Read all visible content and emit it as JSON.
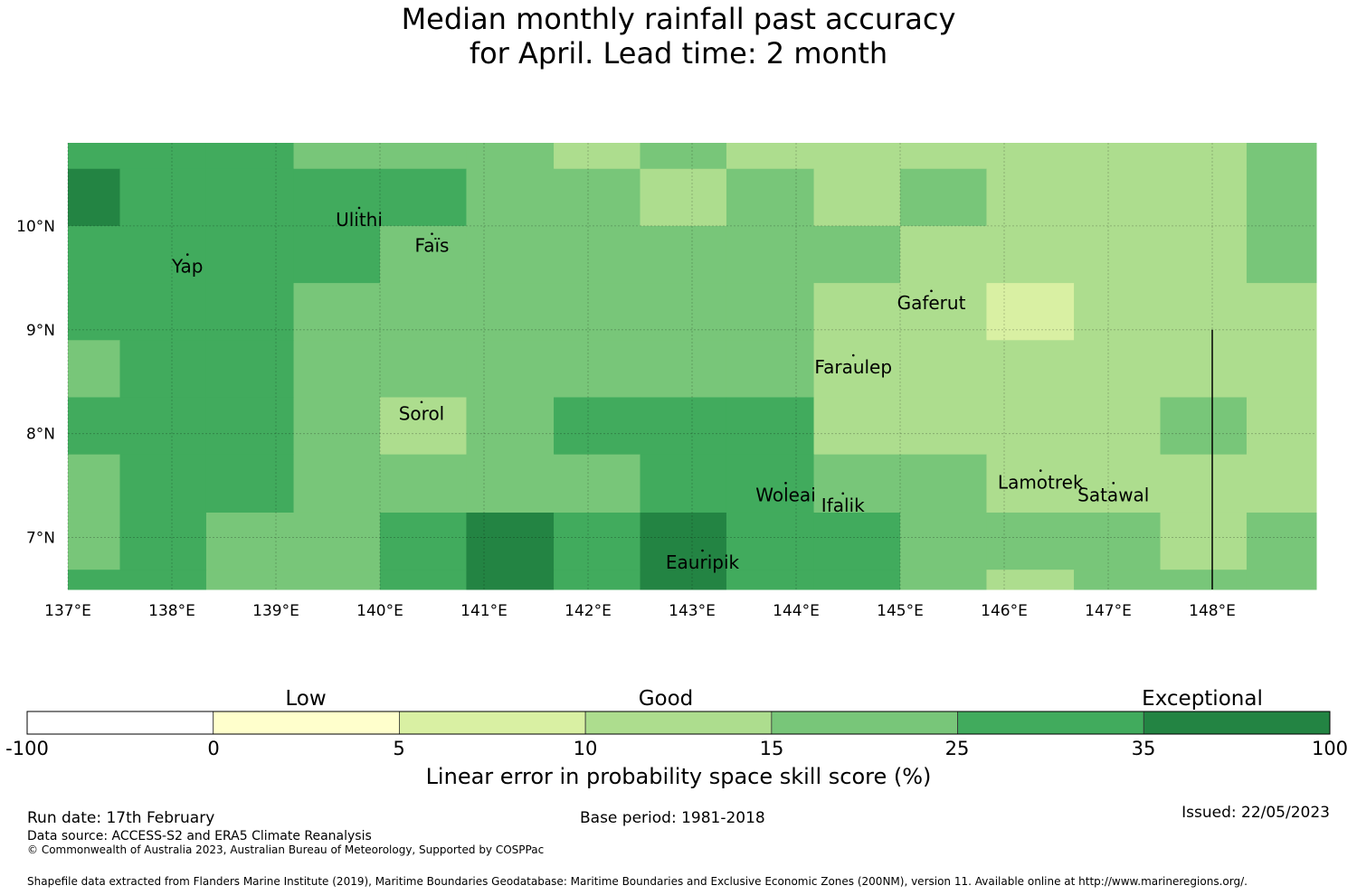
{
  "title": {
    "line1": "Median monthly rainfall past accuracy",
    "line2": "for April. Lead time: 2 month"
  },
  "map": {
    "lon_range": [
      137,
      149
    ],
    "lat_range": [
      6.5,
      10.8
    ],
    "lon_ticks": [
      "137°E",
      "138°E",
      "139°E",
      "140°E",
      "141°E",
      "142°E",
      "143°E",
      "144°E",
      "145°E",
      "146°E",
      "147°E",
      "148°E"
    ],
    "lat_ticks": [
      "10°N",
      "9°N",
      "8°N",
      "7°N"
    ],
    "places": [
      {
        "name": "Ulithi",
        "lon": 139.8,
        "lat": 10.0
      },
      {
        "name": "Faïs",
        "lon": 140.5,
        "lat": 9.75
      },
      {
        "name": "Yap",
        "lon": 138.15,
        "lat": 9.55
      },
      {
        "name": "Gaferut",
        "lon": 145.3,
        "lat": 9.2
      },
      {
        "name": "Faraulep",
        "lon": 144.55,
        "lat": 8.58
      },
      {
        "name": "Sorol",
        "lon": 140.4,
        "lat": 8.13
      },
      {
        "name": "Woleai",
        "lon": 143.9,
        "lat": 7.35
      },
      {
        "name": "Ifalik",
        "lon": 144.45,
        "lat": 7.25
      },
      {
        "name": "Lamotrek",
        "lon": 146.35,
        "lat": 7.47
      },
      {
        "name": "Satawal",
        "lon": 147.05,
        "lat": 7.35
      },
      {
        "name": "Eauripik",
        "lon": 143.1,
        "lat": 6.7
      }
    ],
    "boundary_line": {
      "lon": 148.0,
      "lat_from": 9.0,
      "lat_to": 6.5
    },
    "grid": {
      "lon_edges": [
        137,
        137.5,
        138.33,
        139.17,
        140,
        140.83,
        141.67,
        142.5,
        143.33,
        144.17,
        145,
        145.83,
        146.67,
        147.5,
        148.33,
        149
      ],
      "lat_edges": [
        10.8,
        10.55,
        10.0,
        9.45,
        8.9,
        8.35,
        7.8,
        7.24,
        6.69,
        6.5
      ],
      "classes": [
        [
          5,
          5,
          5,
          4,
          4,
          4,
          3,
          4,
          3,
          3,
          3,
          3,
          3,
          3,
          4
        ],
        [
          6,
          5,
          5,
          5,
          5,
          4,
          4,
          3,
          4,
          3,
          4,
          3,
          3,
          3,
          4
        ],
        [
          5,
          5,
          5,
          5,
          4,
          4,
          4,
          4,
          4,
          4,
          3,
          3,
          3,
          3,
          4
        ],
        [
          5,
          5,
          5,
          4,
          4,
          4,
          4,
          4,
          4,
          3,
          3,
          2,
          3,
          3,
          3
        ],
        [
          4,
          5,
          5,
          4,
          4,
          4,
          4,
          4,
          4,
          3,
          3,
          3,
          3,
          3,
          3
        ],
        [
          5,
          5,
          5,
          4,
          3,
          4,
          5,
          5,
          5,
          3,
          3,
          3,
          3,
          4,
          3
        ],
        [
          4,
          5,
          5,
          4,
          4,
          4,
          4,
          5,
          5,
          4,
          4,
          3,
          3,
          3,
          3
        ],
        [
          4,
          5,
          4,
          4,
          5,
          6,
          5,
          6,
          5,
          5,
          4,
          4,
          4,
          3,
          4
        ],
        [
          5,
          5,
          4,
          4,
          5,
          6,
          5,
          6,
          5,
          5,
          4,
          3,
          4,
          4,
          4
        ]
      ]
    }
  },
  "colorbar": {
    "colors": [
      "#ffffff",
      "#ffffcc",
      "#d9f0a3",
      "#addd8e",
      "#78c679",
      "#41ab5d",
      "#238443"
    ],
    "ticks": [
      "-100",
      "0",
      "5",
      "10",
      "15",
      "25",
      "35",
      "100"
    ],
    "categories": [
      "Low",
      "Good",
      "Exceptional"
    ],
    "label": "Linear error in probability space skill score (%)"
  },
  "footer": {
    "run_date": "Run date: 17th February",
    "base_period": "Base period: 1981-2018",
    "issued": "Issued: 22/05/2023",
    "data_source": "Data source: ACCESS-S2 and ERA5 Climate Reanalysis",
    "copyright": "© Commonwealth of Australia 2023, Australian Bureau of Meteorology, Supported by COSPPac",
    "shapefile": "Shapefile data extracted from Flanders Marine Institute (2019), Maritime Boundaries Geodatabase: Maritime Boundaries and Exclusive Economic Zones (200NM), version 11. Available online at http://www.marineregions.org/."
  }
}
